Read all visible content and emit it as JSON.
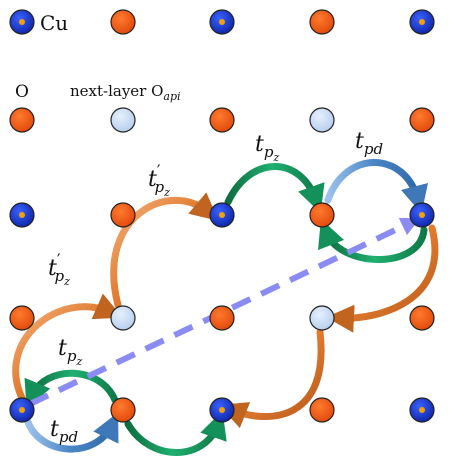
{
  "legend": {
    "cu": "Cu",
    "o": "O",
    "next_layer_prefix": "next-layer O",
    "next_layer_sub": "api"
  },
  "hoppings": {
    "t_main": "t",
    "pz_sub": "p",
    "pz_subsub": "z",
    "pd_sub": "pd",
    "prime": "′"
  },
  "colors": {
    "cu_fill": "#1a3bd6",
    "cu_dot": "#f5a000",
    "o_fill": "#f55a10",
    "o_api_fill": "#c8dcf4",
    "orange_arrow": "#e07a2e",
    "green_arrow": "#14905a",
    "blue_arrow": "#4a86c6",
    "dashed_arrow": "#8a8cf4"
  }
}
